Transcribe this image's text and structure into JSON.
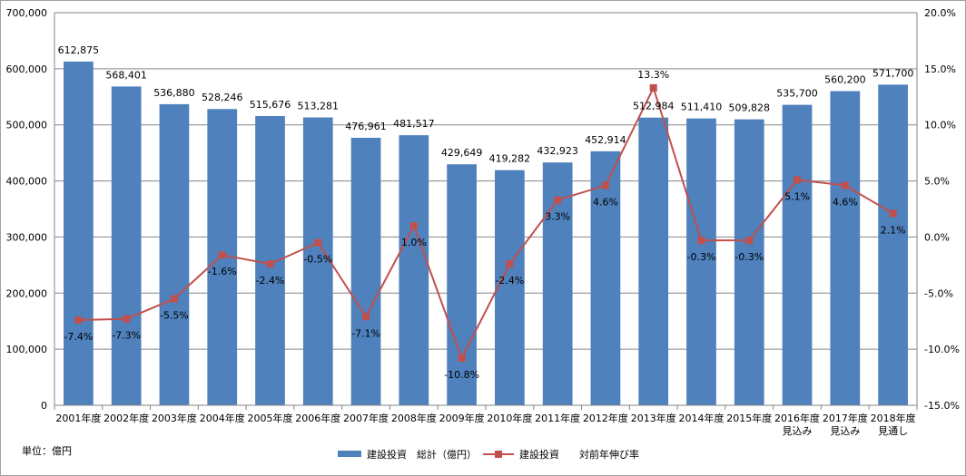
{
  "chart_data": {
    "type": "bar",
    "categories": [
      [
        "2001年度"
      ],
      [
        "2002年度"
      ],
      [
        "2003年度"
      ],
      [
        "2004年度"
      ],
      [
        "2005年度"
      ],
      [
        "2006年度"
      ],
      [
        "2007年度"
      ],
      [
        "2008年度"
      ],
      [
        "2009年度"
      ],
      [
        "2010年度"
      ],
      [
        "2011年度"
      ],
      [
        "2012年度"
      ],
      [
        "2013年度"
      ],
      [
        "2014年度"
      ],
      [
        "2015年度"
      ],
      [
        "2016年度",
        "見込み"
      ],
      [
        "2017年度",
        "見込み"
      ],
      [
        "2018年度",
        "見通し"
      ]
    ],
    "series": [
      {
        "name": "建設投資　総計（億円）",
        "type": "bar",
        "axis": "left",
        "color": "#4F81BD",
        "values": [
          612875,
          568401,
          536880,
          528246,
          515676,
          513281,
          476961,
          481517,
          429649,
          419282,
          432923,
          452914,
          512984,
          511410,
          509828,
          535700,
          560200,
          571700
        ],
        "labels": [
          "612,875",
          "568,401",
          "536,880",
          "528,246",
          "515,676",
          "513,281",
          "476,961",
          "481,517",
          "429,649",
          "419,282",
          "432,923",
          "452,914",
          "512,984",
          "511,410",
          "509,828",
          "535,700",
          "560,200",
          "571,700"
        ]
      },
      {
        "name": "建設投資　　対前年伸び率",
        "type": "line",
        "axis": "right",
        "color": "#C0504D",
        "values": [
          -7.4,
          -7.3,
          -5.5,
          -1.6,
          -2.4,
          -0.5,
          -7.1,
          1.0,
          -10.8,
          -2.4,
          3.3,
          4.6,
          13.3,
          -0.3,
          -0.3,
          5.1,
          4.6,
          2.1
        ],
        "labels": [
          "-7.4%",
          "-7.3%",
          "-5.5%",
          "-1.6%",
          "-2.4%",
          "-0.5%",
          "-7.1%",
          "1.0%",
          "-10.8%",
          "-2.4%",
          "3.3%",
          "4.6%",
          "13.3%",
          "-0.3%",
          "-0.3%",
          "5.1%",
          "4.6%",
          "2.1%"
        ]
      }
    ],
    "y_left": {
      "ylim": [
        0,
        700000
      ],
      "ticks": [
        0,
        100000,
        200000,
        300000,
        400000,
        500000,
        600000,
        700000
      ],
      "tick_labels": [
        "0",
        "100,000",
        "200,000",
        "300,000",
        "400,000",
        "500,000",
        "600,000",
        "700,000"
      ]
    },
    "y_right": {
      "ylim": [
        -15,
        20
      ],
      "ticks": [
        -15,
        -10,
        -5,
        0,
        5,
        10,
        15,
        20
      ],
      "tick_labels": [
        "-15.0%",
        "-10.0%",
        "-5.0%",
        "0.0%",
        "5.0%",
        "10.0%",
        "15.0%",
        "20.0%"
      ]
    },
    "grid": true,
    "legend": "bottom",
    "unit_note": "単位：億円"
  }
}
